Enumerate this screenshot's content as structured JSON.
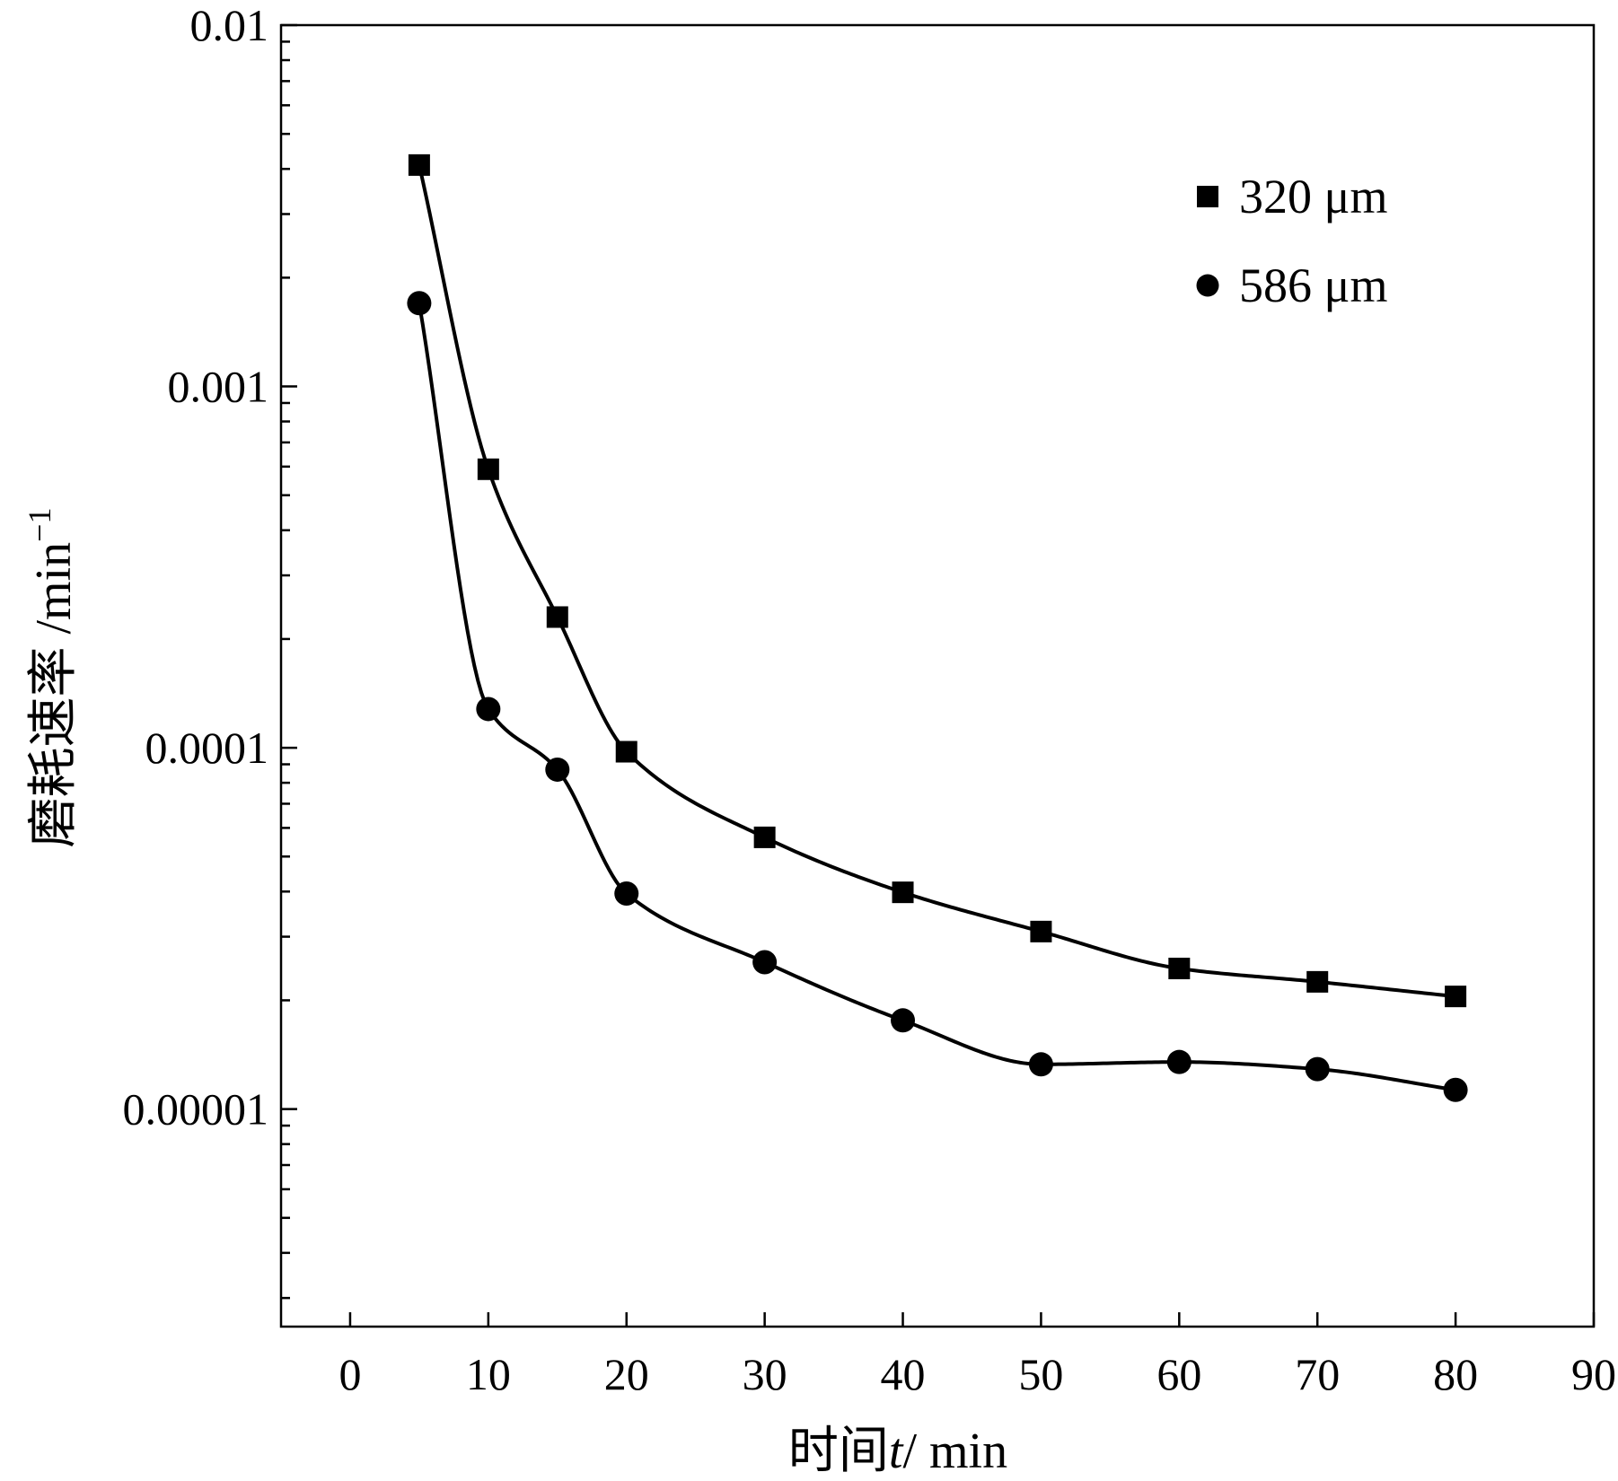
{
  "chart_data": {
    "type": "scatter",
    "title": "",
    "xlabel": {
      "prefix": "时间",
      "var": "t",
      "suffix": "/ min"
    },
    "ylabel": {
      "main": "磨耗速率 /min",
      "sup": "−1"
    },
    "xlim": [
      -5,
      90
    ],
    "ylim": [
      2.5e-06,
      0.01
    ],
    "yscale": "log",
    "x_ticks": [
      0,
      10,
      20,
      30,
      40,
      50,
      60,
      70,
      80,
      90
    ],
    "x_tick_labels": [
      "0",
      "10",
      "20",
      "30",
      "40",
      "50",
      "60",
      "70",
      "80",
      "90"
    ],
    "y_ticks": [
      0.01,
      0.001,
      0.0001,
      1e-05
    ],
    "y_tick_labels": [
      "0.01",
      "0.001",
      "0.0001",
      "0.00001"
    ],
    "grid": false,
    "legend_position": "top-right",
    "series": [
      {
        "name": "320 μm",
        "marker": "square",
        "x": [
          5,
          10,
          15,
          20,
          30,
          40,
          50,
          60,
          70,
          80
        ],
        "values": [
          0.0041,
          0.00059,
          0.00023,
          9.75e-05,
          5.65e-05,
          3.98e-05,
          3.1e-05,
          2.45e-05,
          2.25e-05,
          2.05e-05
        ]
      },
      {
        "name": "586 μm",
        "marker": "circle",
        "x": [
          5,
          10,
          15,
          20,
          30,
          40,
          50,
          60,
          70,
          80
        ],
        "values": [
          0.0017,
          0.000128,
          8.7e-05,
          3.95e-05,
          2.55e-05,
          1.76e-05,
          1.33e-05,
          1.35e-05,
          1.29e-05,
          1.13e-05
        ]
      }
    ]
  }
}
